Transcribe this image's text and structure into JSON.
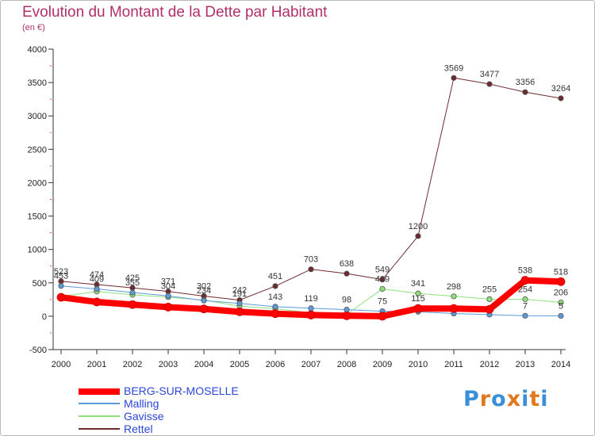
{
  "title": "Evolution du Montant de la Dette par Habitant",
  "subtitle": "(en €)",
  "logo": {
    "text": "Proxiti",
    "colors": [
      "#3a8fd8",
      "#e07820",
      "#3a8fd8",
      "#e07820",
      "#3a8fd8",
      "#e07820",
      "#3a8fd8"
    ]
  },
  "chart_data": {
    "type": "line",
    "x": [
      "2000",
      "2001",
      "2002",
      "2003",
      "2004",
      "2005",
      "2006",
      "2007",
      "2008",
      "2009",
      "2010",
      "2011",
      "2012",
      "2013",
      "2014"
    ],
    "ylim": [
      -500,
      4000
    ],
    "yticks": [
      "-500",
      "0",
      "500",
      "1000",
      "1500",
      "2000",
      "2500",
      "3000",
      "3500",
      "4000"
    ],
    "grid": false,
    "legend_position": "bottom-left",
    "series": [
      {
        "name": "Rettel",
        "color": "#6e2b2f",
        "width": 1,
        "marker": "#6e2b2f",
        "values": [
          523,
          474,
          425,
          371,
          302,
          242,
          451,
          703,
          638,
          549,
          1200,
          3569,
          3477,
          3356,
          3264
        ],
        "labels": [
          "523",
          "474",
          "425",
          "371",
          "302",
          "242",
          "451",
          "703",
          "638",
          "549",
          "1200",
          "3569",
          "3477",
          "3356",
          "3264"
        ]
      },
      {
        "name": "Gavisse",
        "color": "#8ee07a",
        "width": 1,
        "marker": "#8ee07a",
        "values": [
          295,
          370,
          321,
          285,
          242,
          150,
          113,
          52,
          30,
          409,
          341,
          298,
          255,
          254,
          206
        ],
        "labels": [
          "",
          "",
          "",
          "",
          "",
          "",
          "",
          "",
          "",
          "409",
          "341",
          "298",
          "255",
          "254",
          "206"
        ]
      },
      {
        "name": "Malling",
        "color": "#5a9ad8",
        "width": 1,
        "marker": "#5a9ad8",
        "values": [
          453,
          409,
          355,
          304,
          234,
          191,
          143,
          119,
          98,
          75,
          66,
          40,
          24,
          7,
          5
        ],
        "labels": [
          "453",
          "409",
          "355",
          "304",
          "234",
          "191",
          "143",
          "119",
          "98",
          "75",
          "",
          "",
          "",
          "7",
          "5"
        ]
      },
      {
        "name": "BERG-SUR-MOSELLE",
        "color": "#ff0000",
        "width": 8,
        "marker": "#ff0000",
        "values": [
          283,
          213,
          174,
          136,
          109,
          66,
          38,
          18,
          7,
          0,
          115,
          115,
          103,
          538,
          518
        ],
        "labels": [
          "",
          "",
          "",
          "",
          "",
          "",
          "",
          "",
          "",
          "",
          "115",
          "",
          "",
          "538",
          "518"
        ]
      }
    ]
  }
}
